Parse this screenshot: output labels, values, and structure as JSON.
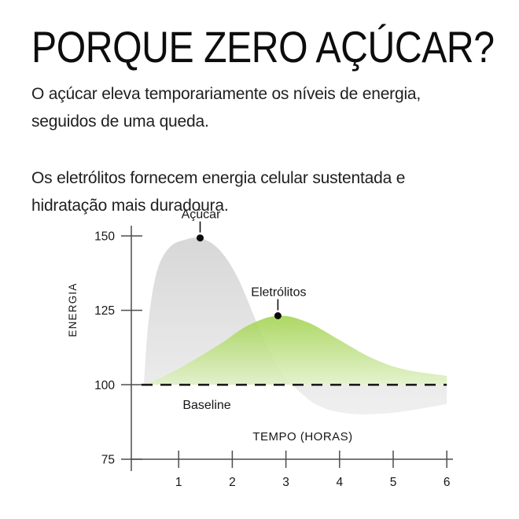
{
  "header": {
    "title": "PORQUE ZERO AÇÚCAR?"
  },
  "intro": {
    "para1": [
      "O açúcar eleva temporariamente os níveis de energia,",
      "seguidos de uma queda."
    ],
    "para2": [
      "Os eletrólitos fornecem energia celular sustentada e",
      "hidratação mais duradoura."
    ]
  },
  "chart_data": {
    "type": "area",
    "title": "",
    "xlabel": "TEMPO (HORAS)",
    "ylabel": "ENERGIA",
    "xlim": [
      0,
      6
    ],
    "ylim": [
      75,
      155
    ],
    "x_ticks": [
      1,
      2,
      3,
      4,
      5,
      6
    ],
    "y_ticks": [
      150,
      125,
      100,
      75
    ],
    "grid": false,
    "legend_position": "inline-callouts",
    "baseline": {
      "label": "Baseline",
      "value": 100
    },
    "series": [
      {
        "name": "Açúcar",
        "fill_top": "#d5d5d5",
        "fill_bottom": "#efefef",
        "x": [
          0.35,
          0.42,
          0.52,
          0.65,
          0.85,
          1.1,
          1.4,
          1.75,
          2.1,
          2.5,
          2.85,
          3.12,
          3.6,
          4.2,
          5.0,
          6.0
        ],
        "values": [
          100,
          118,
          132,
          141,
          146.5,
          148.6,
          149.3,
          145.5,
          136,
          119,
          106,
          100,
          93,
          90.3,
          90.6,
          93.5
        ],
        "marker": {
          "t": 1.4,
          "v": 149.3
        }
      },
      {
        "name": "Eletrólitos",
        "fill_top": "#9fd149",
        "fill_bottom": "#e1f1c9",
        "x": [
          0.35,
          0.8,
          1.3,
          1.8,
          2.3,
          2.85,
          3.4,
          4.0,
          4.6,
          5.2,
          6.0
        ],
        "values": [
          100,
          103.5,
          108.5,
          114,
          120,
          123.2,
          121,
          115,
          109,
          105.2,
          103
        ],
        "marker": {
          "t": 2.85,
          "v": 123.2
        }
      }
    ]
  }
}
